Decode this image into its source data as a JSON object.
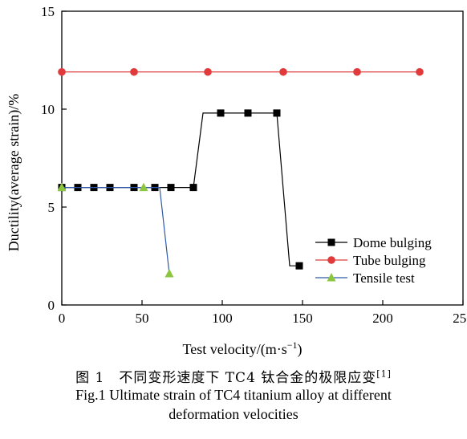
{
  "chart_data": {
    "type": "line",
    "xlabel": "Test velocity/(m·s",
    "xlabel_sup": "−1",
    "xlabel_end": ")",
    "ylabel": "Ductility(average strain)/%",
    "xlim": [
      0,
      250
    ],
    "ylim": [
      0,
      15
    ],
    "xticks": [
      0,
      50,
      100,
      150,
      200,
      250
    ],
    "yticks": [
      0,
      5,
      10,
      15
    ],
    "grid": false,
    "legend_position": "lower-right",
    "series": [
      {
        "name": "Dome bulging",
        "color": "#000000",
        "marker": "square",
        "x": [
          0,
          10,
          20,
          30,
          45,
          58,
          68,
          82,
          88,
          99,
          116,
          134,
          142,
          148
        ],
        "y": [
          6,
          6,
          6,
          6,
          6,
          6,
          6,
          6,
          9.8,
          9.8,
          9.8,
          9.8,
          2,
          2
        ],
        "marked": [
          true,
          true,
          true,
          true,
          true,
          true,
          true,
          true,
          false,
          true,
          true,
          true,
          false,
          true
        ]
      },
      {
        "name": "Tube bulging",
        "color": "#e03a3a",
        "marker": "circle",
        "x": [
          0,
          45,
          91,
          138,
          184,
          223
        ],
        "y": [
          11.9,
          11.9,
          11.9,
          11.9,
          11.9,
          11.9
        ],
        "marked": [
          true,
          true,
          true,
          true,
          true,
          true
        ]
      },
      {
        "name": "Tensile test",
        "color": "#2f5aa8",
        "marker_color": "#8cc63f",
        "marker": "triangle",
        "x": [
          0,
          51,
          61,
          67
        ],
        "y": [
          6,
          6,
          6,
          1.6
        ],
        "marked": [
          true,
          true,
          false,
          true
        ]
      }
    ]
  },
  "caption": {
    "cn": "图 1　不同变形速度下 TC4 钛合金的极限应变",
    "cn_ref": "[1]",
    "en_line1": "Fig.1 Ultimate strain of TC4 titanium alloy at different",
    "en_line2": "deformation velocities"
  }
}
